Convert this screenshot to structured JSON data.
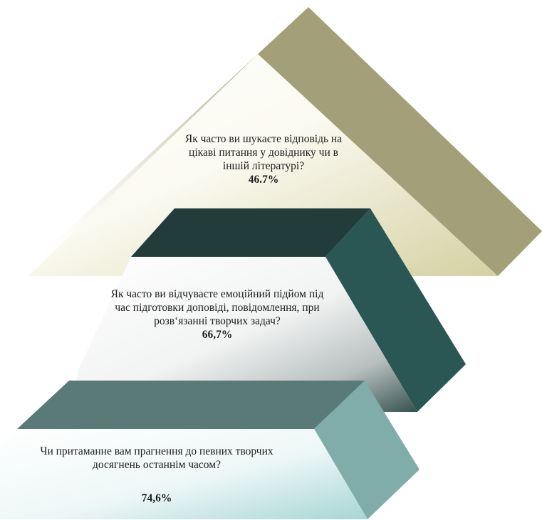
{
  "pyramid": {
    "tiers": [
      {
        "question": "Як часто ви шукаєте відповідь на  цікаві питання у довіднику чи в іншій літературі?",
        "value": "46.7%",
        "colors": {
          "face": "#a39f78",
          "side": "#a39f78",
          "gradient_to": "#dad7a9"
        }
      },
      {
        "question": "Як часто ви відчуваєте емоційний підйом під час підготовки доповіді, повідомлення, при розв‘язанні творчих задач?",
        "value": "66,7%",
        "colors": {
          "top": "#213c3a",
          "side": "#2a5653",
          "gradient_to": "#3c5d5a"
        }
      },
      {
        "question": "Чи притаманне вам прагнення до певних творчих досягнень останнім часом?",
        "value": "74,6%",
        "colors": {
          "top": "#5a7a77",
          "side": "#80adaa",
          "gradient_to": "#aed8d8"
        }
      }
    ]
  }
}
